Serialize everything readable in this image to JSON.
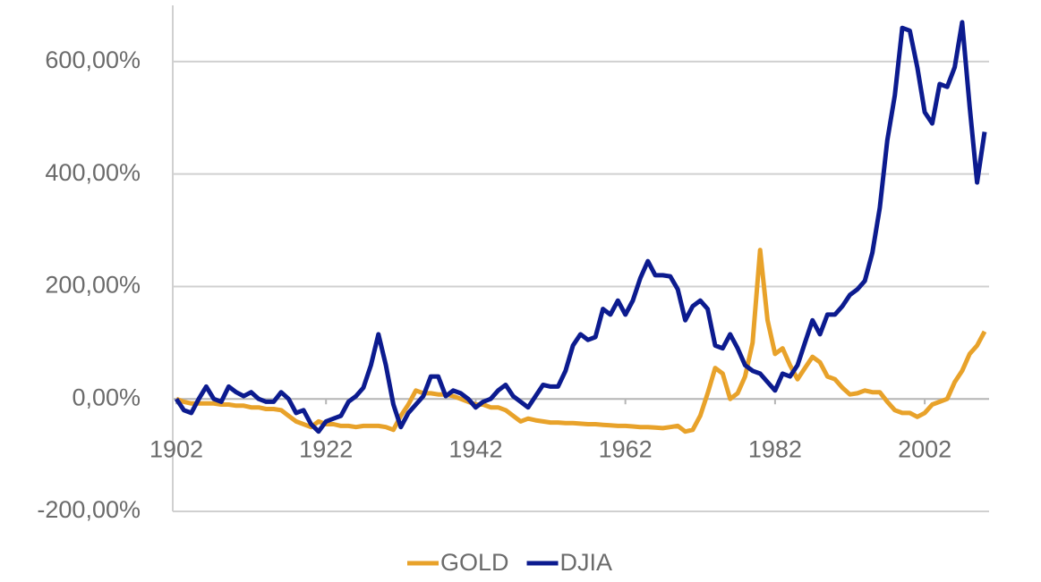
{
  "chart_data": {
    "type": "line",
    "x": [
      1902,
      1903,
      1904,
      1905,
      1906,
      1907,
      1908,
      1909,
      1910,
      1911,
      1912,
      1913,
      1914,
      1915,
      1916,
      1917,
      1918,
      1919,
      1920,
      1921,
      1922,
      1923,
      1924,
      1925,
      1926,
      1927,
      1928,
      1929,
      1930,
      1931,
      1932,
      1933,
      1934,
      1935,
      1936,
      1937,
      1938,
      1939,
      1940,
      1941,
      1942,
      1943,
      1944,
      1945,
      1946,
      1947,
      1948,
      1949,
      1950,
      1951,
      1952,
      1953,
      1954,
      1955,
      1956,
      1957,
      1958,
      1959,
      1960,
      1961,
      1962,
      1963,
      1964,
      1965,
      1966,
      1967,
      1968,
      1969,
      1970,
      1971,
      1972,
      1973,
      1974,
      1975,
      1976,
      1977,
      1978,
      1979,
      1980,
      1981,
      1982,
      1983,
      1984,
      1985,
      1986,
      1987,
      1988,
      1989,
      1990,
      1991,
      1992,
      1993,
      1994,
      1995,
      1996,
      1997,
      1998,
      1999,
      2000,
      2001,
      2002,
      2003,
      2004,
      2005,
      2006,
      2007,
      2008,
      2009,
      2010
    ],
    "series": [
      {
        "name": "GOLD",
        "color": "#e8a22a",
        "values": [
          0,
          -5,
          -8,
          -8,
          -8,
          -8,
          -10,
          -10,
          -12,
          -12,
          -15,
          -15,
          -18,
          -18,
          -20,
          -30,
          -40,
          -45,
          -50,
          -40,
          -45,
          -45,
          -48,
          -48,
          -50,
          -48,
          -48,
          -48,
          -50,
          -55,
          -30,
          -10,
          15,
          10,
          10,
          8,
          8,
          5,
          0,
          -5,
          -10,
          -10,
          -15,
          -15,
          -20,
          -30,
          -40,
          -35,
          -38,
          -40,
          -42,
          -42,
          -43,
          -43,
          -44,
          -45,
          -45,
          -46,
          -47,
          -48,
          -48,
          -49,
          -50,
          -50,
          -51,
          -52,
          -50,
          -48,
          -58,
          -55,
          -30,
          10,
          55,
          45,
          0,
          10,
          40,
          100,
          265,
          140,
          80,
          90,
          60,
          35,
          55,
          75,
          65,
          40,
          35,
          20,
          8,
          10,
          15,
          12,
          12,
          -5,
          -20,
          -25,
          -25,
          -32,
          -25,
          -10,
          -5,
          0,
          30,
          50,
          80,
          95,
          120
        ]
      },
      {
        "name": "DJIA",
        "color": "#0c1b8f",
        "values": [
          0,
          -20,
          -25,
          0,
          22,
          0,
          -5,
          22,
          12,
          5,
          12,
          0,
          -5,
          -5,
          12,
          0,
          -25,
          -20,
          -45,
          -58,
          -40,
          -35,
          -30,
          -5,
          5,
          20,
          60,
          115,
          60,
          -10,
          -50,
          -25,
          -10,
          5,
          40,
          40,
          5,
          15,
          10,
          0,
          -15,
          -5,
          0,
          15,
          25,
          5,
          -5,
          -15,
          5,
          25,
          22,
          22,
          50,
          95,
          115,
          105,
          110,
          160,
          150,
          175,
          150,
          175,
          215,
          245,
          220,
          220,
          218,
          195,
          140,
          165,
          175,
          160,
          95,
          90,
          115,
          90,
          60,
          50,
          45,
          30,
          15,
          45,
          40,
          60,
          100,
          140,
          115,
          150,
          150,
          165,
          185,
          195,
          210,
          260,
          340,
          460,
          540,
          660,
          655,
          590,
          510,
          490,
          560,
          555,
          590,
          670,
          520,
          385,
          475
        ]
      }
    ],
    "xlim": [
      1902,
      2010
    ],
    "xticks": [
      1902,
      1922,
      1942,
      1962,
      1982,
      2002
    ],
    "ylim": [
      -200,
      700
    ],
    "yticks": [
      {
        "value": -200,
        "label": "-200,00%"
      },
      {
        "value": 0,
        "label": "0,00%"
      },
      {
        "value": 200,
        "label": "200,00%"
      },
      {
        "value": 400,
        "label": "400,00%"
      },
      {
        "value": 600,
        "label": "600,00%"
      }
    ],
    "grid": true,
    "legend": "bottom"
  }
}
